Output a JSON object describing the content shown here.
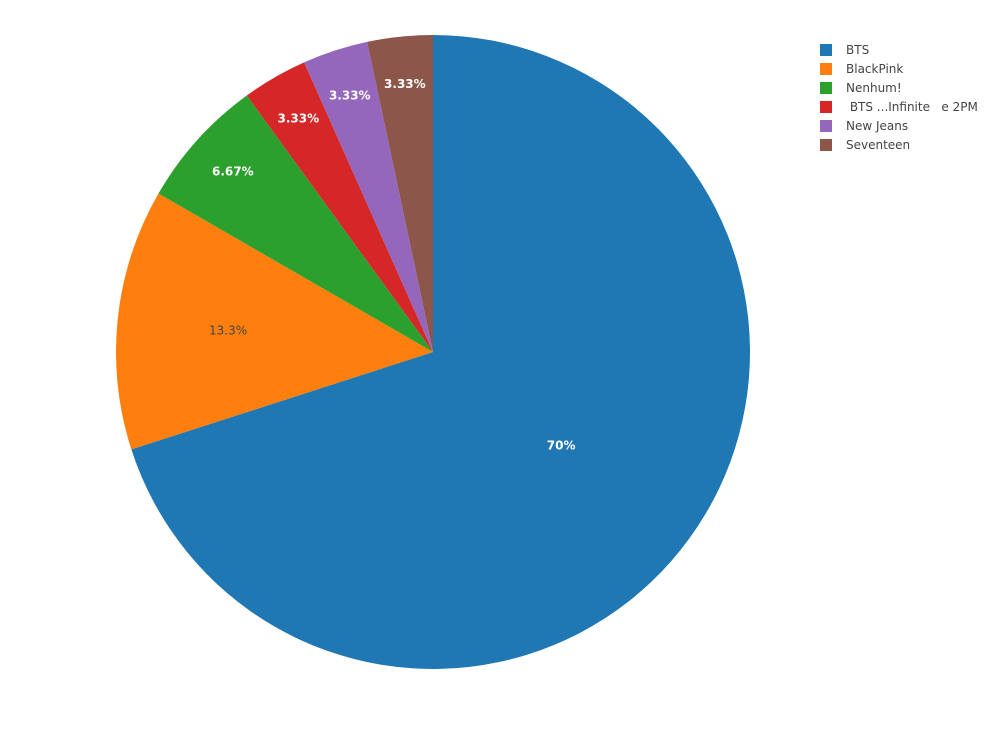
{
  "chart_data": {
    "type": "pie",
    "categories": [
      "BTS",
      "BlackPink",
      "Nenhum!",
      " BTS ...Infinite   e 2PM",
      "New Jeans",
      "Seventeen"
    ],
    "values": [
      70,
      13.3,
      6.67,
      3.33,
      3.33,
      3.33
    ],
    "labels": [
      "70%",
      "13.3%",
      "6.67%",
      "3.33%",
      "3.33%",
      "3.33%"
    ],
    "colors": [
      "#1f77b4",
      "#ff7f0e",
      "#2ca02c",
      "#d62728",
      "#9467bd",
      "#8c564b"
    ],
    "label_colors": [
      "#ffffff",
      "#444444",
      "#ffffff",
      "#ffffff",
      "#ffffff",
      "#ffffff"
    ],
    "label_bold": [
      true,
      false,
      true,
      true,
      true,
      true
    ],
    "direction": "clockwise",
    "legend_position": "top-right"
  },
  "legend": {
    "items": [
      {
        "label": "BTS",
        "color": "#1f77b4"
      },
      {
        "label": "BlackPink",
        "color": "#ff7f0e"
      },
      {
        "label": "Nenhum!",
        "color": "#2ca02c"
      },
      {
        "label": " BTS ...Infinite   e 2PM",
        "color": "#d62728"
      },
      {
        "label": "New Jeans",
        "color": "#9467bd"
      },
      {
        "label": "Seventeen",
        "color": "#8c564b"
      }
    ]
  }
}
